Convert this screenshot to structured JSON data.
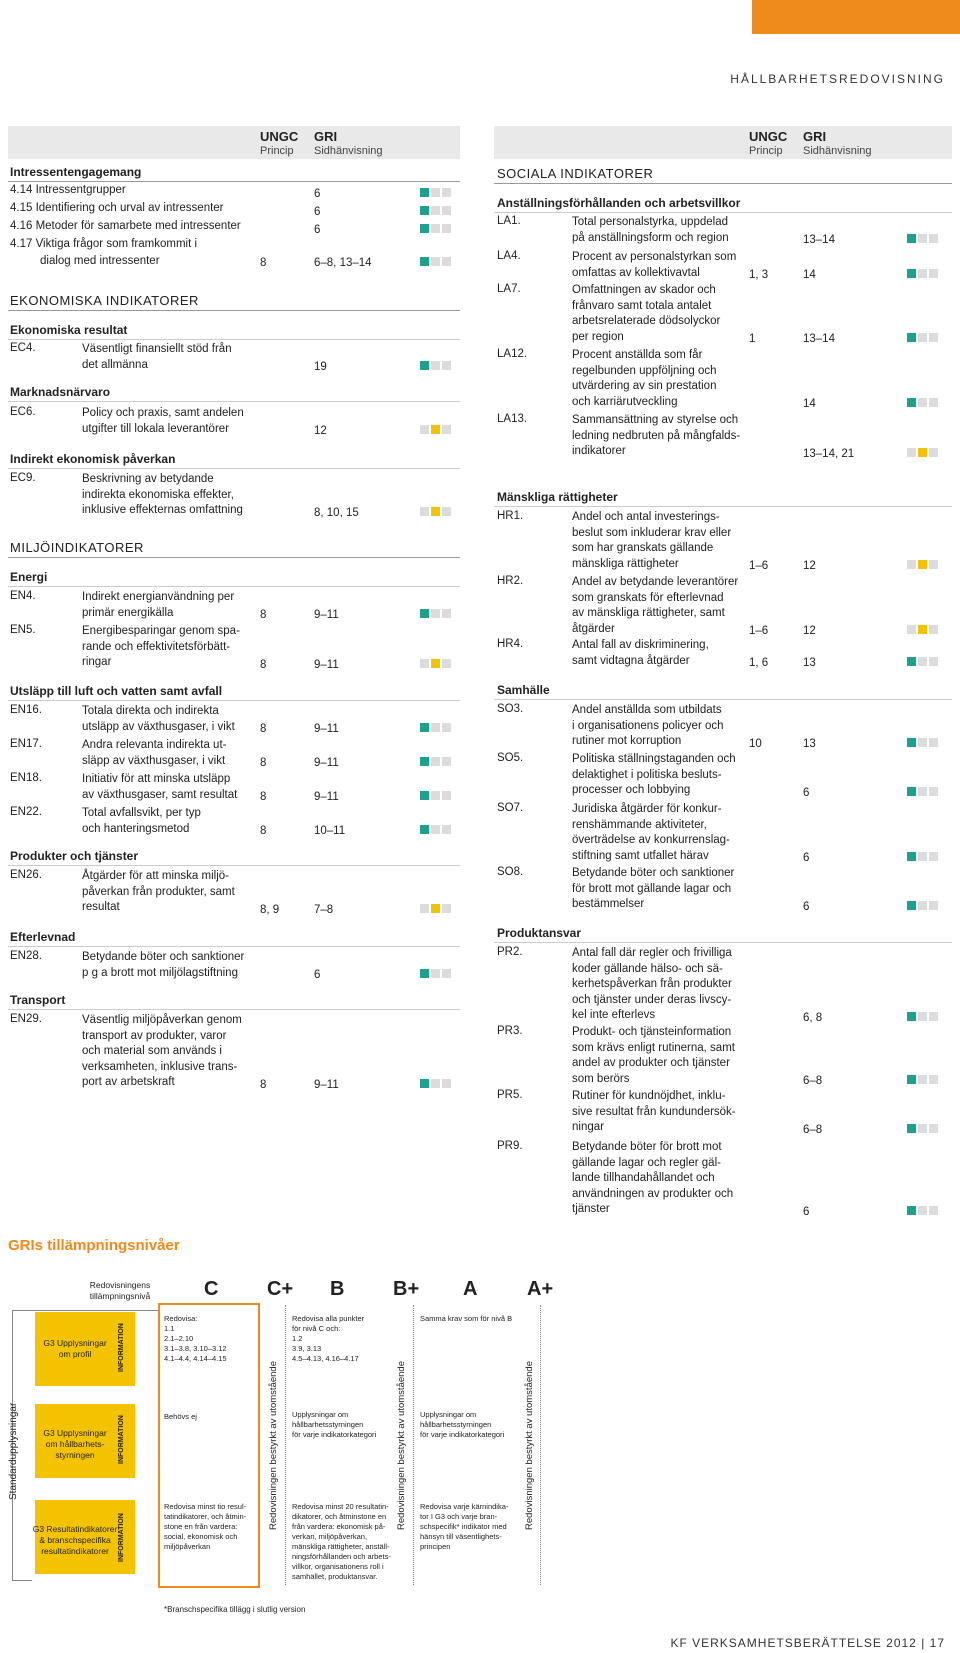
{
  "section_label": "HÅLLBARHETSREDOVISNING",
  "footer": "KF VERKSAMHETSBERÄTTELSE 2012 | 17",
  "header": {
    "ungc": "UNGC",
    "ungc_sub": "Princip",
    "gri": "GRI",
    "gri_sub": "Sidhänvisning"
  },
  "left": {
    "stakeholder": {
      "title": "Intressentengagemang",
      "rows": [
        {
          "code": "4.14 Intressentgrupper",
          "ungc": "",
          "gri": "6",
          "ind": "t"
        },
        {
          "code": "4.15 Identifiering och urval av intressenter",
          "ungc": "",
          "gri": "6",
          "ind": "t"
        },
        {
          "code": "4.16 Metoder för samarbete med intressenter",
          "ungc": "",
          "gri": "6",
          "ind": "t"
        },
        {
          "code": "4.17 Viktiga frågor som framkommit i",
          "code2": "dialog med intressenter",
          "ungc": "8",
          "gri": "6–8, 13–14",
          "ind": "t"
        }
      ]
    },
    "econ": {
      "title": "EKONOMISKA INDIKATORER",
      "sub1": "Ekonomiska resultat",
      "sub2": "Marknadsnärvaro",
      "sub3": "Indirekt ekonomisk påverkan",
      "rows": [
        {
          "code": "EC4.",
          "l1": "Väsentligt finansiellt stöd från",
          "l2": "det allmänna",
          "ungc": "",
          "gri": "19",
          "ind": "t"
        },
        {
          "code": "EC6.",
          "l1": "Policy och praxis, samt andelen",
          "l2": "utgifter till lokala leverantörer",
          "ungc": "",
          "gri": "12",
          "ind": "y"
        },
        {
          "code": "EC9.",
          "l1": "Beskrivning av betydande",
          "l2": "indirekta ekonomiska effekter,",
          "l3": "inklusive effekternas omfattning",
          "ungc": "",
          "gri": "8, 10, 15",
          "ind": "y"
        }
      ]
    },
    "env": {
      "title": "MILJÖINDIKATORER",
      "sub_energy": "Energi",
      "sub_emission": "Utsläpp till luft och vatten samt avfall",
      "sub_products": "Produkter och tjänster",
      "sub_compliance": "Efterlevnad",
      "sub_transport": "Transport",
      "rows": [
        {
          "code": "EN4.",
          "l1": "Indirekt energianvändning per",
          "l2": "primär energikälla",
          "ungc": "8",
          "gri": "9–11",
          "ind": "t"
        },
        {
          "code": "EN5.",
          "l1": "Energibesparingar genom spa-",
          "l2": "rande och effektivitetsförbätt-",
          "l3": "ringar",
          "ungc": "8",
          "gri": "9–11",
          "ind": "y"
        },
        {
          "code": "EN16.",
          "l1": "Totala direkta och indirekta",
          "l2": "utsläpp av växthusgaser, i vikt",
          "ungc": "8",
          "gri": "9–11",
          "ind": "t"
        },
        {
          "code": "EN17.",
          "l1": "Andra relevanta indirekta ut-",
          "l2": "släpp av växthusgaser, i vikt",
          "ungc": "8",
          "gri": "9–11",
          "ind": "t"
        },
        {
          "code": "EN18.",
          "l1": "Initiativ för att minska utsläpp",
          "l2": "av växthusgaser, samt resultat",
          "ungc": "8",
          "gri": "9–11",
          "ind": "t"
        },
        {
          "code": "EN22.",
          "l1": "Total avfallsvikt, per typ",
          "l2": "och hanteringsmetod",
          "ungc": "8",
          "gri": "10–11",
          "ind": "t"
        },
        {
          "code": "EN26.",
          "l1": "Åtgärder för att minska miljö-",
          "l2": "påverkan från produkter, samt",
          "l3": "resultat",
          "ungc": "8, 9",
          "gri": "7–8",
          "ind": "y"
        },
        {
          "code": "EN28.",
          "l1": "Betydande böter och sanktioner",
          "l2": "p g a brott mot miljölagstiftning",
          "ungc": "",
          "gri": "6",
          "ind": "t"
        },
        {
          "code": "EN29.",
          "l1": "Väsentlig miljöpåverkan genom",
          "l2": "transport av produkter, varor",
          "l3": "och material som används i",
          "l4": "verksamheten, inklusive trans-",
          "l5": "port av arbetskraft",
          "ungc": "8",
          "gri": "9–11",
          "ind": "t"
        }
      ]
    }
  },
  "right": {
    "title": "SOCIALA INDIKATORER",
    "sub_labor": "Anställningsförhållanden och arbetsvillkor",
    "sub_hr": "Mänskliga rättigheter",
    "sub_society": "Samhälle",
    "sub_product": "Produktansvar",
    "rows": [
      {
        "code": "LA1.",
        "l1": "Total personalstyrka, uppdelad",
        "l2": "på anställningsform och region",
        "ungc": "",
        "gri": "13–14",
        "ind": "t"
      },
      {
        "code": "LA4.",
        "l1": "Procent av personalstyrkan som",
        "l2": "omfattas av kollektivavtal",
        "ungc": "1, 3",
        "gri": "14",
        "ind": "t"
      },
      {
        "code": "LA7.",
        "l1": "Omfattningen av skador och",
        "l2": "frånvaro samt totala antalet",
        "l3": "arbetsrelaterade dödsolyckor",
        "l4": "per region",
        "ungc": "1",
        "gri": "13–14",
        "ind": "t"
      },
      {
        "code": "LA12.",
        "l1": "Procent anställda som får",
        "l2": "regelbunden uppföljning och",
        "l3": "utvärdering av sin prestation",
        "l4": "och karriärutveckling",
        "ungc": "",
        "gri": "14",
        "ind": "t"
      },
      {
        "code": "LA13.",
        "l1": "Sammansättning av styrelse och",
        "l2": "ledning nedbruten på mångfalds-",
        "l3": "indikatorer",
        "ungc": "",
        "gri": "13–14, 21",
        "ind": "y"
      },
      {
        "code": "HR1.",
        "l1": "Andel och antal investerings-",
        "l2": "beslut som inkluderar krav eller",
        "l3": "som har granskats gällande",
        "l4": "mänskliga rättigheter",
        "ungc": "1–6",
        "gri": "12",
        "ind": "y"
      },
      {
        "code": "HR2.",
        "l1": "Andel av betydande leverantörer",
        "l2": "som granskats för efterlevnad",
        "l3": "av mänskliga rättigheter, samt",
        "l4": "åtgärder",
        "ungc": "1–6",
        "gri": "12",
        "ind": "y"
      },
      {
        "code": "HR4.",
        "l1": "Antal fall av diskriminering,",
        "l2": "samt vidtagna åtgärder",
        "ungc": "1, 6",
        "gri": "13",
        "ind": "t"
      },
      {
        "code": "SO3.",
        "l1": "Andel anställda som utbildats",
        "l2": "i organisationens policyer och",
        "l3": "rutiner mot korruption",
        "ungc": "10",
        "gri": "13",
        "ind": "t"
      },
      {
        "code": "SO5.",
        "l1": "Politiska ställningstaganden och",
        "l2": "delaktighet i politiska besluts-",
        "l3": "processer och lobbying",
        "ungc": "",
        "gri": "6",
        "ind": "t"
      },
      {
        "code": "SO7.",
        "l1": "Juridiska åtgärder för konkur-",
        "l2": "renshämmande aktiviteter,",
        "l3": "överträdelse av konkurrenslag-",
        "l4": "stiftning samt utfallet härav",
        "ungc": "",
        "gri": "6",
        "ind": "t"
      },
      {
        "code": "SO8.",
        "l1": "Betydande böter och sanktioner",
        "l2": "för brott mot gällande lagar och",
        "l3": "bestämmelser",
        "ungc": "",
        "gri": "6",
        "ind": "t"
      },
      {
        "code": "PR2.",
        "l1": "Antal fall där regler och frivilliga",
        "l2": "koder gällande hälso- och sä-",
        "l3": "kerhetspåverkan från produkter",
        "l4": "och tjänster under deras livscy-",
        "l5": "kel inte efterlevs",
        "ungc": "",
        "gri": "6, 8",
        "ind": "t"
      },
      {
        "code": "PR3.",
        "l1": "Produkt- och tjänsteinformation",
        "l2": "som krävs enligt rutinerna, samt",
        "l3": "andel av produkter och tjänster",
        "l4": "som berörs",
        "ungc": "",
        "gri": "6–8",
        "ind": "t"
      },
      {
        "code": "PR5.",
        "l1": "Rutiner för kundnöjdhet, inklu-",
        "l2": "sive resultat från kundundersök-",
        "l3": "ningar",
        "ungc": "",
        "gri": "6–8",
        "ind": "t"
      },
      {
        "code": "PR9.",
        "l1": "Betydande böter för brott mot",
        "l2": "gällande lagar och regler gäl-",
        "l3": "lande tillhandahållandet och",
        "l4": "användningen av produkter och",
        "l5": "tjänster",
        "ungc": "",
        "gri": "6",
        "ind": "t"
      }
    ]
  },
  "gri_levels": {
    "title": "GRIs tillämpningsnivåer",
    "levels_label_1": "Redovisningens",
    "levels_label_2": "tillämpningsnivå",
    "levels": [
      "C",
      "C+",
      "B",
      "B+",
      "A",
      "A+"
    ],
    "side_label": "Standardupplysningar",
    "boxes": [
      {
        "l1": "G3 Upplysningar",
        "l2": "om profil"
      },
      {
        "l1": "G3 Upplysningar",
        "l2": "om hållbarhets-",
        "l3": "styrningen"
      },
      {
        "l1": "G3 Resultatindikatorer",
        "l2": "& branschspecifika",
        "l3": "resultatindikatorer"
      }
    ],
    "info": "INFORMATION",
    "verified": "Redovisningen bestyrkt av utomstående",
    "c_profile": [
      "Redovisa:",
      "1.1",
      "2.1–2.10",
      "3.1–3.8, 3.10–3.12",
      "4.1–4.4, 4.14–4.15"
    ],
    "c_mgmt": [
      "Behövs ej"
    ],
    "c_perf": [
      "Redovisa minst tio resul-",
      "tatindikatorer, och åtmin-",
      "stone en från vardera:",
      "social, ekonomisk och",
      "miljöpåverkan"
    ],
    "b_profile": [
      "Redovisa alla punkter",
      "för nivå C och:",
      "1.2",
      "3.9, 3.13",
      "4.5–4.13, 4.16–4.17"
    ],
    "b_mgmt": [
      "Upplysningar om",
      "hållbarhetsstyrningen",
      "för varje indikatorkategori"
    ],
    "b_perf": [
      "Redovisa minst 20 resultatin-",
      "dikatorer, och åtminstone en",
      "från vardera: ekonomisk på-",
      "verkan, miljöpåverkan,",
      "mänskliga rättigheter, anställ-",
      "ningsförhållanden och arbets-",
      "villkor, organisationens roll i",
      "samhället, produktansvar."
    ],
    "a_profile": [
      "Samma krav som för nivå B"
    ],
    "a_mgmt": [
      "Upplysningar om",
      "hållbarhetsstyrningen",
      "för varje indikatorkategori"
    ],
    "a_perf": [
      "Redovisa varje kärnindika-",
      "tor I G3 och varje bran-",
      "schspecifik* indikator med",
      "hänsyn till väsentlighets-",
      "principen"
    ],
    "footnote": "*Branschspecifika tillägg i slutlig version"
  },
  "colors": {
    "orange": "#ef8a1c",
    "teal": "#1aa28c",
    "yellow": "#f4c300",
    "gray": "#dcdcdc"
  }
}
